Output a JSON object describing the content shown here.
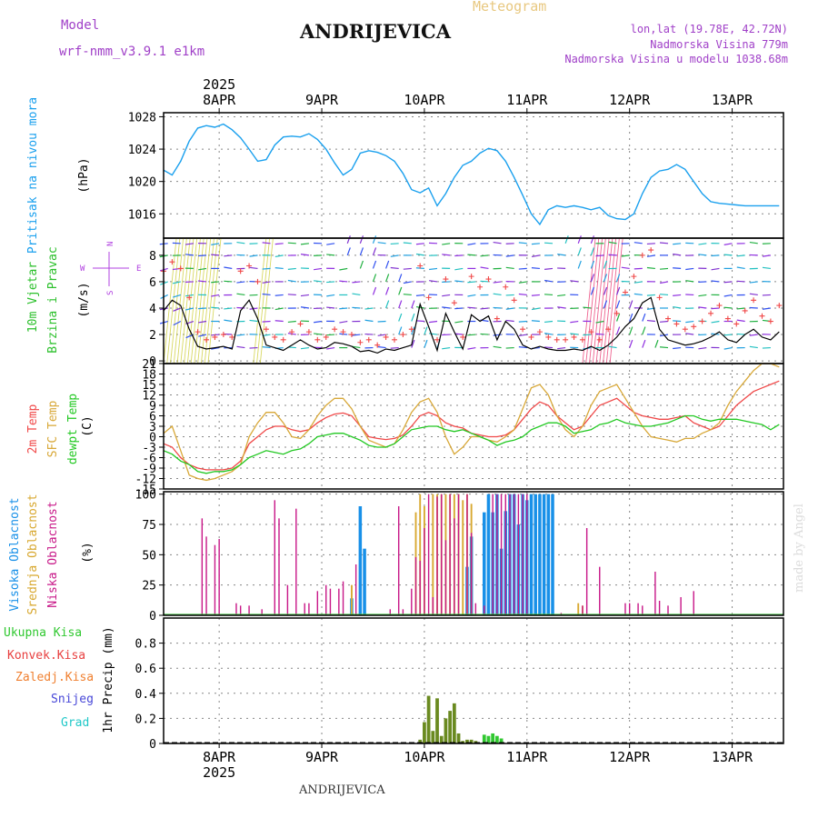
{
  "header": {
    "meteogram_label": "Meteogram",
    "title": "ANDRIJEVICA",
    "model_label": "Model",
    "model_name": "wrf-nmm_v3.9.1  e1km",
    "location_lonlat": "lon,lat (19.78E, 42.72N)",
    "elevation": "Nadmorska Visina 779m",
    "model_elevation": "Nadmorska Visina u modelu 1038.68m",
    "footer_name": "ANDRIJEVICA",
    "credit": "made by Angel"
  },
  "time_axis": {
    "top_year": "2025",
    "bottom_year": "2025",
    "day_labels": [
      "8APR",
      "9APR",
      "10APR",
      "11APR",
      "12APR",
      "13APR"
    ],
    "range_hours": [
      -13,
      132
    ]
  },
  "colors": {
    "pressure": "#1aa0ee",
    "temp_2m": "#f04848",
    "temp_sfc": "#d8a838",
    "dewpoint": "#22c822",
    "cloud_high": "#1890e8",
    "cloud_mid": "#d8a830",
    "cloud_low": "#c81888",
    "gust": "#f04848",
    "wind": "#000000",
    "precip_total": "#30c830",
    "precip_conv": "#e84040",
    "precip_frozen": "#f08030",
    "precip_snow": "#4848d8",
    "precip_hail": "#20c8c8",
    "precip_stack": "#6a8a20"
  },
  "chart_data": [
    {
      "id": "pressure",
      "type": "line",
      "ylabel_colored": "Pritisak na nivou mora",
      "unit": "(hPa)",
      "ylim": [
        1013,
        1028.5
      ],
      "yticks": [
        1016,
        1020,
        1024,
        1028
      ],
      "x": [
        -13,
        -11,
        -9,
        -7,
        -5,
        -3,
        -1,
        1,
        3,
        5,
        7,
        9,
        11,
        13,
        15,
        17,
        19,
        21,
        23,
        25,
        27,
        29,
        31,
        33,
        35,
        37,
        39,
        41,
        43,
        45,
        47,
        49,
        51,
        53,
        55,
        57,
        59,
        61,
        63,
        65,
        67,
        69,
        71,
        73,
        75,
        77,
        79,
        81,
        83,
        85,
        87,
        89,
        91,
        93,
        95,
        97,
        99,
        101,
        103,
        105,
        107,
        109,
        111,
        113,
        115,
        117,
        119,
        121,
        123,
        125,
        127,
        129,
        131
      ],
      "values": [
        1021.4,
        1020.8,
        1022.5,
        1025,
        1026.6,
        1026.9,
        1026.7,
        1027.1,
        1026.4,
        1025.4,
        1024,
        1022.5,
        1022.7,
        1024.5,
        1025.5,
        1025.6,
        1025.5,
        1025.9,
        1025.2,
        1024,
        1022.3,
        1020.8,
        1021.5,
        1023.5,
        1023.8,
        1023.6,
        1023.2,
        1022.5,
        1021,
        1019,
        1018.6,
        1019.2,
        1017,
        1018.5,
        1020.5,
        1022,
        1022.5,
        1023.5,
        1024.1,
        1023.8,
        1022.5,
        1020.5,
        1018.3,
        1016,
        1014.7,
        1016.5,
        1017,
        1016.8,
        1017,
        1016.8,
        1016.5,
        1016.8,
        1015.8,
        1015.4,
        1015.3,
        1016,
        1018.5,
        1020.5,
        1021.3,
        1021.5,
        1022.1,
        1021.5,
        1020,
        1018.5,
        1017.5,
        1017.3,
        1017.2,
        1017.1,
        1017,
        1017,
        1017,
        1017,
        1017
      ]
    },
    {
      "id": "wind",
      "type": "line",
      "ylabel_colored_1": "10m Vjetar",
      "ylabel_colored_2": "Brzina i Pravac",
      "unit": "(m/s)",
      "compass": {
        "n": "N",
        "s": "S",
        "e": "E",
        "w": "W"
      },
      "ylim": [
        -0.2,
        9.3
      ],
      "yticks": [
        0,
        2,
        4,
        6,
        8
      ],
      "x": [
        -13,
        -11,
        -9,
        -7,
        -5,
        -3,
        -1,
        1,
        3,
        5,
        7,
        9,
        11,
        13,
        15,
        17,
        19,
        21,
        23,
        25,
        27,
        29,
        31,
        33,
        35,
        37,
        39,
        41,
        43,
        45,
        47,
        49,
        51,
        53,
        55,
        57,
        59,
        61,
        63,
        65,
        67,
        69,
        71,
        73,
        75,
        77,
        79,
        81,
        83,
        85,
        87,
        89,
        91,
        93,
        95,
        97,
        99,
        101,
        103,
        105,
        107,
        109,
        111,
        113,
        115,
        117,
        119,
        121,
        123,
        125,
        127,
        129,
        131
      ],
      "wind_speed": [
        3.8,
        4.6,
        4.2,
        2.4,
        1.1,
        0.9,
        1.0,
        1.1,
        0.9,
        3.8,
        4.6,
        3.2,
        1.2,
        1.0,
        0.8,
        1.2,
        1.6,
        1.2,
        0.9,
        1.0,
        1.4,
        1.3,
        1.1,
        0.7,
        0.8,
        0.6,
        0.9,
        0.8,
        1.0,
        1.2,
        4.3,
        2.6,
        0.8,
        3.6,
        2.2,
        0.9,
        3.5,
        3.0,
        3.4,
        1.6,
        3.0,
        2.4,
        1.2,
        0.9,
        1.1,
        0.9,
        0.8,
        0.8,
        0.9,
        0.8,
        1.1,
        0.8,
        1.2,
        1.8,
        2.6,
        3.2,
        4.4,
        4.8,
        2.4,
        1.6,
        1.4,
        1.2,
        1.3,
        1.5,
        1.8,
        2.2,
        1.6,
        1.4,
        2.0,
        2.4,
        1.8,
        1.6,
        2.2
      ],
      "gust": [
        6.8,
        7.5,
        7.0,
        4.8,
        2.2,
        1.6,
        1.8,
        2.0,
        1.8,
        6.8,
        7.2,
        6.0,
        2.4,
        1.8,
        1.6,
        2.2,
        2.8,
        2.2,
        1.6,
        1.8,
        2.4,
        2.2,
        2.0,
        1.4,
        1.6,
        1.2,
        1.8,
        1.6,
        2.0,
        2.4,
        7.2,
        4.8,
        1.6,
        6.2,
        4.4,
        1.8,
        6.4,
        5.6,
        6.2,
        3.2,
        5.6,
        4.6,
        2.4,
        1.8,
        2.2,
        1.8,
        1.6,
        1.6,
        1.8,
        1.6,
        2.2,
        1.6,
        2.4,
        3.6,
        5.2,
        6.4,
        8.0,
        8.4,
        4.8,
        3.2,
        2.8,
        2.4,
        2.6,
        3.0,
        3.6,
        4.2,
        3.2,
        2.8,
        3.8,
        4.6,
        3.4,
        3.0,
        4.2
      ]
    },
    {
      "id": "temperature",
      "type": "line",
      "ylabel_colored_1": "2m Temp",
      "ylabel_colored_2": "SFC Temp",
      "ylabel_colored_3": "dewpt Temp",
      "unit": "(C)",
      "ylim": [
        -15,
        21
      ],
      "yticks": [
        -15,
        -12,
        -9,
        -6,
        -3,
        0,
        3,
        6,
        9,
        12,
        15,
        18,
        21
      ],
      "x": [
        -13,
        -11,
        -9,
        -7,
        -5,
        -3,
        -1,
        1,
        3,
        5,
        7,
        9,
        11,
        13,
        15,
        17,
        19,
        21,
        23,
        25,
        27,
        29,
        31,
        33,
        35,
        37,
        39,
        41,
        43,
        45,
        47,
        49,
        51,
        53,
        55,
        57,
        59,
        61,
        63,
        65,
        67,
        69,
        71,
        73,
        75,
        77,
        79,
        81,
        83,
        85,
        87,
        89,
        91,
        93,
        95,
        97,
        99,
        101,
        103,
        105,
        107,
        109,
        111,
        113,
        115,
        117,
        119,
        121,
        123,
        125,
        127,
        129,
        131
      ],
      "series": [
        {
          "key": "temp_2m",
          "values": [
            -2,
            -3,
            -6,
            -8,
            -9,
            -9.5,
            -9.5,
            -9.5,
            -9,
            -7,
            -2,
            0,
            2,
            3,
            3,
            2,
            1.5,
            2,
            4,
            5.5,
            6.5,
            6.8,
            6,
            3,
            0,
            -0.5,
            -0.8,
            -0.5,
            0.5,
            3,
            6,
            7,
            6,
            4,
            3,
            2.5,
            1,
            0.5,
            0,
            0,
            0.5,
            2,
            5,
            8,
            10,
            9,
            6,
            4,
            2,
            3,
            6,
            9,
            10,
            11,
            9,
            7,
            6,
            5.5,
            5,
            5,
            5.5,
            6,
            4,
            3,
            2,
            3,
            6,
            9,
            11,
            13,
            14,
            15,
            16
          ]
        },
        {
          "key": "temp_sfc",
          "values": [
            1,
            3,
            -4,
            -11,
            -12,
            -12.5,
            -12,
            -11,
            -10,
            -8,
            0,
            4,
            7,
            7,
            4,
            0,
            -0.5,
            2,
            6,
            9,
            11,
            11,
            8,
            3,
            -1,
            -2,
            -3,
            -2,
            2,
            7,
            10,
            11,
            7,
            0,
            -5,
            -3,
            0,
            0,
            -1,
            -1.5,
            0,
            2,
            8,
            14,
            15,
            12,
            6,
            2,
            0,
            3,
            9,
            13,
            14,
            15,
            11,
            7,
            3,
            0,
            -0.5,
            -1,
            -1.5,
            -0.5,
            -0.5,
            1,
            2,
            4,
            9,
            13,
            16,
            19,
            21,
            21,
            20
          ]
        },
        {
          "key": "dewpoint",
          "values": [
            -4,
            -5,
            -7,
            -8,
            -10,
            -10.5,
            -10,
            -10,
            -9.5,
            -8,
            -6,
            -5,
            -4,
            -4.5,
            -5,
            -4,
            -3.5,
            -2,
            0,
            0.5,
            1,
            1,
            0,
            -1,
            -2.5,
            -3,
            -3,
            -2,
            0,
            2,
            2.5,
            3,
            3,
            2,
            1.5,
            2,
            1,
            0,
            -1,
            -2.5,
            -1.5,
            -1,
            0,
            2,
            3,
            4,
            4,
            3,
            1,
            1.5,
            2,
            3.5,
            4,
            5,
            4,
            3.5,
            3,
            3,
            3.5,
            4,
            5,
            6,
            6,
            5,
            4.5,
            5,
            5,
            5,
            4.5,
            4,
            3.5,
            2,
            3.5
          ]
        }
      ]
    },
    {
      "id": "clouds",
      "type": "bar",
      "ylabel_colored_1": "Visoka Oblacnost",
      "ylabel_colored_2": "Srednja Oblacnost",
      "ylabel_colored_3": "Niska Oblacnost",
      "unit": "(%)",
      "ylim": [
        0,
        102
      ],
      "yticks": [
        0,
        25,
        50,
        75,
        100
      ],
      "low": [
        [
          -4,
          80
        ],
        [
          -3,
          65
        ],
        [
          -1,
          58
        ],
        [
          0,
          63
        ],
        [
          4,
          10
        ],
        [
          5,
          8
        ],
        [
          7,
          8
        ],
        [
          10,
          5
        ],
        [
          13,
          95
        ],
        [
          14,
          80
        ],
        [
          16,
          25
        ],
        [
          18,
          88
        ],
        [
          20,
          10
        ],
        [
          21,
          10
        ],
        [
          23,
          20
        ],
        [
          25,
          25
        ],
        [
          26,
          22
        ],
        [
          28,
          22
        ],
        [
          29,
          28
        ],
        [
          32,
          42
        ],
        [
          40,
          5
        ],
        [
          42,
          90
        ],
        [
          43,
          5
        ],
        [
          45,
          22
        ],
        [
          46,
          48
        ],
        [
          47,
          45
        ],
        [
          48,
          72
        ],
        [
          49,
          100
        ],
        [
          50,
          15
        ],
        [
          51,
          98
        ],
        [
          52,
          100
        ],
        [
          53,
          62
        ],
        [
          54,
          100
        ],
        [
          55,
          80
        ],
        [
          56,
          100
        ],
        [
          58,
          100
        ],
        [
          59,
          68
        ],
        [
          60,
          10
        ],
        [
          62,
          8
        ],
        [
          64,
          100
        ],
        [
          65,
          100
        ],
        [
          66,
          100
        ],
        [
          67,
          100
        ],
        [
          68,
          100
        ],
        [
          69,
          100
        ],
        [
          70,
          100
        ],
        [
          71,
          100
        ],
        [
          72,
          100
        ],
        [
          80,
          2
        ],
        [
          85,
          8
        ],
        [
          86,
          72
        ],
        [
          89,
          40
        ],
        [
          95,
          10
        ],
        [
          96,
          10
        ],
        [
          98,
          10
        ],
        [
          99,
          8
        ],
        [
          102,
          36
        ],
        [
          103,
          12
        ],
        [
          105,
          8
        ],
        [
          108,
          15
        ],
        [
          111,
          20
        ]
      ],
      "mid": [
        [
          31,
          25
        ],
        [
          46,
          85
        ],
        [
          47,
          100
        ],
        [
          48,
          90
        ],
        [
          50,
          100
        ],
        [
          51,
          100
        ],
        [
          52,
          100
        ],
        [
          53,
          100
        ],
        [
          54,
          100
        ],
        [
          55,
          100
        ],
        [
          56,
          100
        ],
        [
          57,
          95
        ],
        [
          58,
          100
        ],
        [
          59,
          92
        ],
        [
          84,
          10
        ],
        [
          85,
          8
        ]
      ],
      "high": [
        [
          31,
          14
        ],
        [
          33,
          90
        ],
        [
          34,
          55
        ],
        [
          58,
          40
        ],
        [
          59,
          65
        ],
        [
          62,
          85
        ],
        [
          63,
          100
        ],
        [
          64,
          85
        ],
        [
          65,
          100
        ],
        [
          66,
          55
        ],
        [
          67,
          86
        ],
        [
          68,
          100
        ],
        [
          69,
          100
        ],
        [
          70,
          75
        ],
        [
          71,
          100
        ],
        [
          72,
          95
        ],
        [
          73,
          100
        ],
        [
          74,
          100
        ],
        [
          75,
          100
        ],
        [
          76,
          100
        ],
        [
          77,
          100
        ],
        [
          78,
          100
        ]
      ]
    },
    {
      "id": "precip",
      "type": "bar",
      "ylabel_colored_1": "Ukupna Kisa",
      "ylabel_colored_2": "Konvek.Kisa",
      "ylabel_colored_3": "Zaledj.Kisa",
      "ylabel_colored_4": "Snijeg",
      "ylabel_colored_5": "Grad",
      "ylabel_black": "1hr Precip (mm)",
      "ylim": [
        0,
        1.0
      ],
      "yticks": [
        0,
        0.2,
        0.4,
        0.6,
        0.8
      ],
      "bars": [
        [
          47,
          0.03
        ],
        [
          48,
          0.17
        ],
        [
          49,
          0.38
        ],
        [
          50,
          0.1
        ],
        [
          51,
          0.36
        ],
        [
          52,
          0.06
        ],
        [
          53,
          0.2
        ],
        [
          54,
          0.26
        ],
        [
          55,
          0.32
        ],
        [
          56,
          0.08
        ],
        [
          57,
          0.02
        ],
        [
          58,
          0.03
        ],
        [
          59,
          0.03
        ],
        [
          60,
          0.02
        ],
        [
          62,
          0.07
        ],
        [
          63,
          0.06
        ],
        [
          64,
          0.08
        ],
        [
          65,
          0.06
        ],
        [
          66,
          0.04
        ],
        [
          83,
          0.005
        ],
        [
          84,
          0.005
        ]
      ]
    }
  ]
}
